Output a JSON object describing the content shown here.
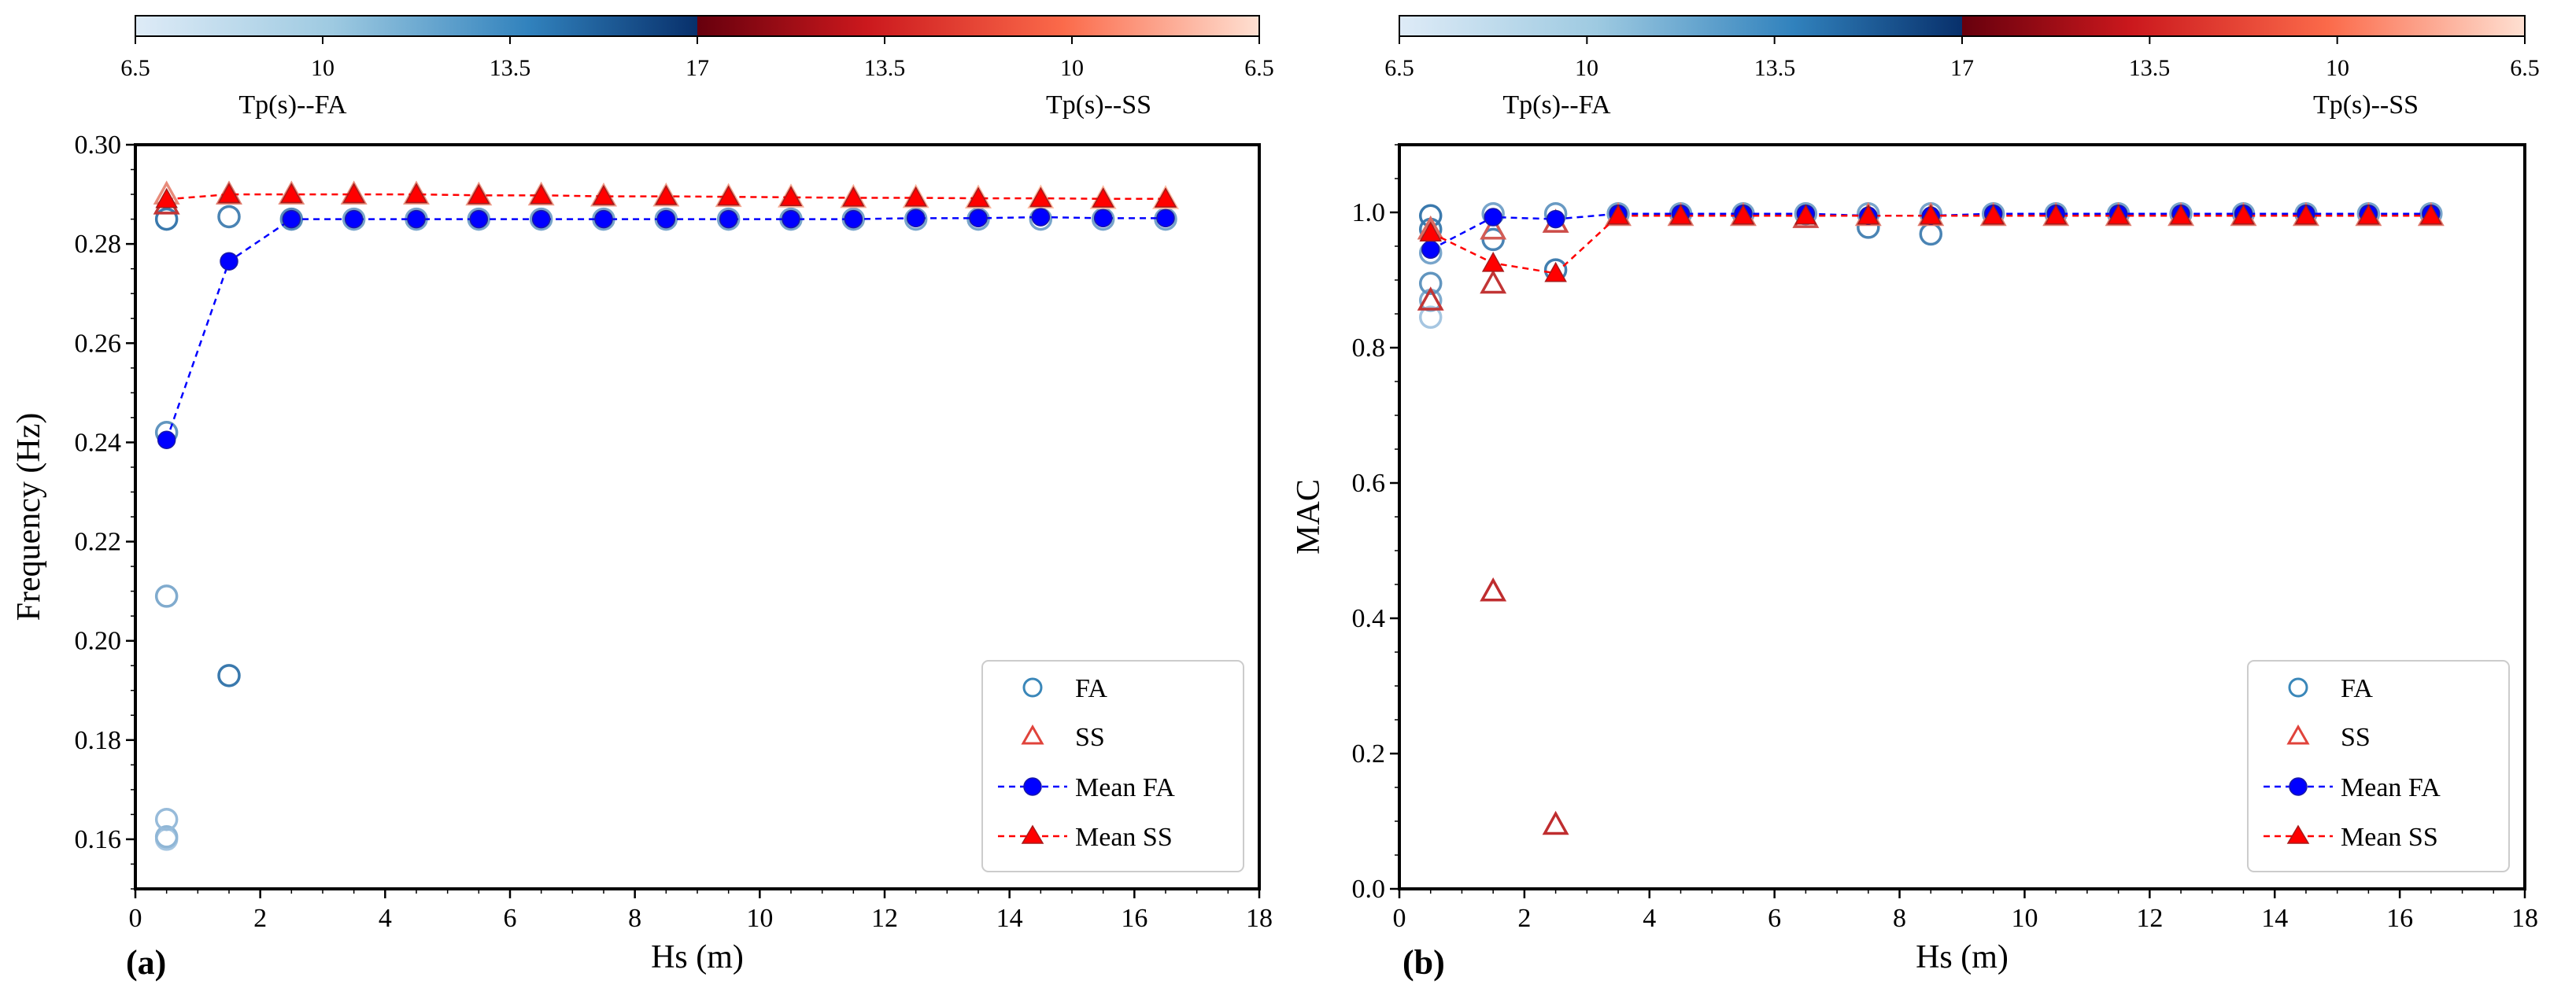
{
  "colors": {
    "fa_mean": "#0000ff",
    "ss_mean": "#ff0000",
    "fa_scatter_dark": "#2b6ea5",
    "fa_scatter_light": "#c5dcf0",
    "ss_scatter_dark": "#b81d22",
    "ss_scatter_light": "#fcbba1"
  },
  "colorbar": {
    "left_ticks": [
      "6.5",
      "10",
      "13.5",
      "17"
    ],
    "right_ticks": [
      "13.5",
      "10",
      "6.5"
    ],
    "left_label": "Tp(s)--FA",
    "right_label": "Tp(s)--SS"
  },
  "legend_labels": [
    "FA",
    "SS",
    "Mean FA",
    "Mean SS"
  ],
  "chart_data": [
    {
      "type": "scatter",
      "panel_label": "(a)",
      "xlabel": "Hs (m)",
      "ylabel": "Frequency (Hz)",
      "xlim": [
        0,
        18
      ],
      "ylim": [
        0.15,
        0.3
      ],
      "xticks": [
        "0",
        "2",
        "4",
        "6",
        "8",
        "10",
        "12",
        "14",
        "16",
        "18"
      ],
      "yticks": [
        "0.16",
        "0.18",
        "0.20",
        "0.22",
        "0.24",
        "0.26",
        "0.28",
        "0.30"
      ],
      "legend": [
        "FA",
        "SS",
        "Mean FA",
        "Mean SS"
      ],
      "legend_position": "lower-right",
      "series": [
        {
          "name": "Mean FA",
          "x": [
            0.5,
            1.5,
            2.5,
            3.5,
            4.5,
            5.5,
            6.5,
            7.5,
            8.5,
            9.5,
            10.5,
            11.5,
            12.5,
            13.5,
            14.5,
            15.5,
            16.5
          ],
          "y": [
            0.2405,
            0.2765,
            0.285,
            0.285,
            0.285,
            0.285,
            0.285,
            0.285,
            0.285,
            0.285,
            0.285,
            0.285,
            0.2852,
            0.2852,
            0.2854,
            0.2852,
            0.2852
          ]
        },
        {
          "name": "Mean SS",
          "x": [
            0.5,
            1.5,
            2.5,
            3.5,
            4.5,
            5.5,
            6.5,
            7.5,
            8.5,
            9.5,
            10.5,
            11.5,
            12.5,
            13.5,
            14.5,
            15.5,
            16.5
          ],
          "y": [
            0.289,
            0.29,
            0.29,
            0.29,
            0.29,
            0.2898,
            0.2898,
            0.2896,
            0.2896,
            0.2895,
            0.2894,
            0.2893,
            0.2893,
            0.2892,
            0.2892,
            0.2891,
            0.2891
          ]
        },
        {
          "name": "FA",
          "points": [
            [
              0.5,
              0.16,
              0.2
            ],
            [
              0.5,
              0.1605,
              0.35
            ],
            [
              0.5,
              0.164,
              0.3
            ],
            [
              0.5,
              0.209,
              0.45
            ],
            [
              0.5,
              0.242,
              0.65
            ],
            [
              0.5,
              0.285,
              0.9
            ],
            [
              1.5,
              0.193,
              0.9
            ],
            [
              1.5,
              0.2855,
              0.8
            ],
            [
              2.5,
              0.285,
              0.7
            ],
            [
              3.5,
              0.285,
              0.5
            ],
            [
              4.5,
              0.285,
              0.5
            ],
            [
              5.5,
              0.285,
              0.5
            ],
            [
              6.5,
              0.285,
              0.5
            ],
            [
              7.5,
              0.285,
              0.5
            ],
            [
              8.5,
              0.285,
              0.5
            ],
            [
              9.5,
              0.285,
              0.5
            ],
            [
              10.5,
              0.285,
              0.5
            ],
            [
              11.5,
              0.285,
              0.5
            ],
            [
              12.5,
              0.285,
              0.5
            ],
            [
              13.5,
              0.285,
              0.5
            ],
            [
              14.5,
              0.285,
              0.5
            ],
            [
              15.5,
              0.285,
              0.5
            ],
            [
              16.5,
              0.285,
              0.5
            ]
          ]
        },
        {
          "name": "SS",
          "points": [
            [
              0.5,
              0.288,
              0.85
            ],
            [
              0.5,
              0.29,
              0.3
            ],
            [
              1.5,
              0.29,
              0.4
            ],
            [
              2.5,
              0.29,
              0.3
            ],
            [
              3.5,
              0.29,
              0.3
            ],
            [
              4.5,
              0.29,
              0.25
            ],
            [
              5.5,
              0.2898,
              0.2
            ],
            [
              6.5,
              0.2898,
              0.2
            ],
            [
              7.5,
              0.2896,
              0.2
            ],
            [
              8.5,
              0.2896,
              0.15
            ],
            [
              9.5,
              0.2895,
              0.15
            ],
            [
              10.5,
              0.2894,
              0.1
            ],
            [
              11.5,
              0.2893,
              0.1
            ],
            [
              12.5,
              0.2893,
              0.05
            ],
            [
              13.5,
              0.2892,
              0.05
            ],
            [
              14.5,
              0.2892,
              0.0
            ],
            [
              15.5,
              0.2891,
              0.0
            ],
            [
              16.5,
              0.2891,
              0.0
            ]
          ]
        }
      ]
    },
    {
      "type": "scatter",
      "panel_label": "(b)",
      "xlabel": "Hs (m)",
      "ylabel": "MAC",
      "xlim": [
        0,
        18
      ],
      "ylim": [
        0.0,
        1.1
      ],
      "xticks": [
        "0",
        "2",
        "4",
        "6",
        "8",
        "10",
        "12",
        "14",
        "16",
        "18"
      ],
      "yticks": [
        "0.0",
        "0.2",
        "0.4",
        "0.6",
        "0.8",
        "1.0"
      ],
      "legend": [
        "FA",
        "SS",
        "Mean FA",
        "Mean SS"
      ],
      "legend_position": "lower-right",
      "series": [
        {
          "name": "Mean FA",
          "x": [
            0.5,
            1.5,
            2.5,
            3.5,
            4.5,
            5.5,
            6.5,
            7.5,
            8.5,
            9.5,
            10.5,
            11.5,
            12.5,
            13.5,
            14.5,
            15.5,
            16.5
          ],
          "y": [
            0.945,
            0.993,
            0.99,
            0.998,
            0.998,
            0.998,
            0.998,
            0.995,
            0.995,
            0.998,
            0.998,
            0.998,
            0.998,
            0.998,
            0.998,
            0.998,
            0.998
          ]
        },
        {
          "name": "Mean SS",
          "x": [
            0.5,
            1.5,
            2.5,
            3.5,
            4.5,
            5.5,
            6.5,
            7.5,
            8.5,
            9.5,
            10.5,
            11.5,
            12.5,
            13.5,
            14.5,
            15.5,
            16.5
          ],
          "y": [
            0.97,
            0.925,
            0.91,
            0.995,
            0.995,
            0.995,
            0.995,
            0.995,
            0.995,
            0.995,
            0.995,
            0.995,
            0.995,
            0.995,
            0.995,
            0.995,
            0.995
          ]
        },
        {
          "name": "FA",
          "points": [
            [
              0.5,
              0.845,
              0.2
            ],
            [
              0.5,
              0.87,
              0.45
            ],
            [
              0.5,
              0.895,
              0.65
            ],
            [
              0.5,
              0.94,
              0.5
            ],
            [
              0.5,
              0.975,
              0.85
            ],
            [
              0.5,
              0.995,
              0.9
            ],
            [
              1.5,
              0.96,
              0.8
            ],
            [
              1.5,
              0.998,
              0.5
            ],
            [
              2.5,
              0.915,
              0.85
            ],
            [
              2.5,
              0.998,
              0.6
            ],
            [
              3.5,
              0.998,
              0.5
            ],
            [
              4.5,
              0.998,
              0.5
            ],
            [
              5.5,
              0.998,
              0.5
            ],
            [
              6.5,
              0.998,
              0.5
            ],
            [
              7.5,
              0.978,
              0.8
            ],
            [
              7.5,
              0.998,
              0.5
            ],
            [
              8.5,
              0.968,
              0.8
            ],
            [
              8.5,
              0.998,
              0.5
            ],
            [
              9.5,
              0.998,
              0.5
            ],
            [
              10.5,
              0.998,
              0.5
            ],
            [
              11.5,
              0.998,
              0.5
            ],
            [
              12.5,
              0.998,
              0.5
            ],
            [
              13.5,
              0.998,
              0.5
            ],
            [
              14.5,
              0.998,
              0.5
            ],
            [
              15.5,
              0.998,
              0.5
            ],
            [
              16.5,
              0.998,
              0.5
            ]
          ]
        },
        {
          "name": "SS",
          "points": [
            [
              0.5,
              0.87,
              0.85
            ],
            [
              0.5,
              0.975,
              0.5
            ],
            [
              1.5,
              0.44,
              0.9
            ],
            [
              1.5,
              0.895,
              0.85
            ],
            [
              1.5,
              0.975,
              0.6
            ],
            [
              2.5,
              0.095,
              0.9
            ],
            [
              2.5,
              0.985,
              0.7
            ],
            [
              3.5,
              0.995,
              0.4
            ],
            [
              4.5,
              0.995,
              0.4
            ],
            [
              5.5,
              0.995,
              0.4
            ],
            [
              6.5,
              0.992,
              0.7
            ],
            [
              7.5,
              0.995,
              0.4
            ],
            [
              8.5,
              0.995,
              0.4
            ],
            [
              9.5,
              0.995,
              0.4
            ],
            [
              10.5,
              0.995,
              0.4
            ],
            [
              11.5,
              0.995,
              0.4
            ],
            [
              12.5,
              0.995,
              0.4
            ],
            [
              13.5,
              0.995,
              0.4
            ],
            [
              14.5,
              0.995,
              0.4
            ],
            [
              15.5,
              0.995,
              0.4
            ],
            [
              16.5,
              0.995,
              0.4
            ]
          ]
        }
      ]
    }
  ]
}
